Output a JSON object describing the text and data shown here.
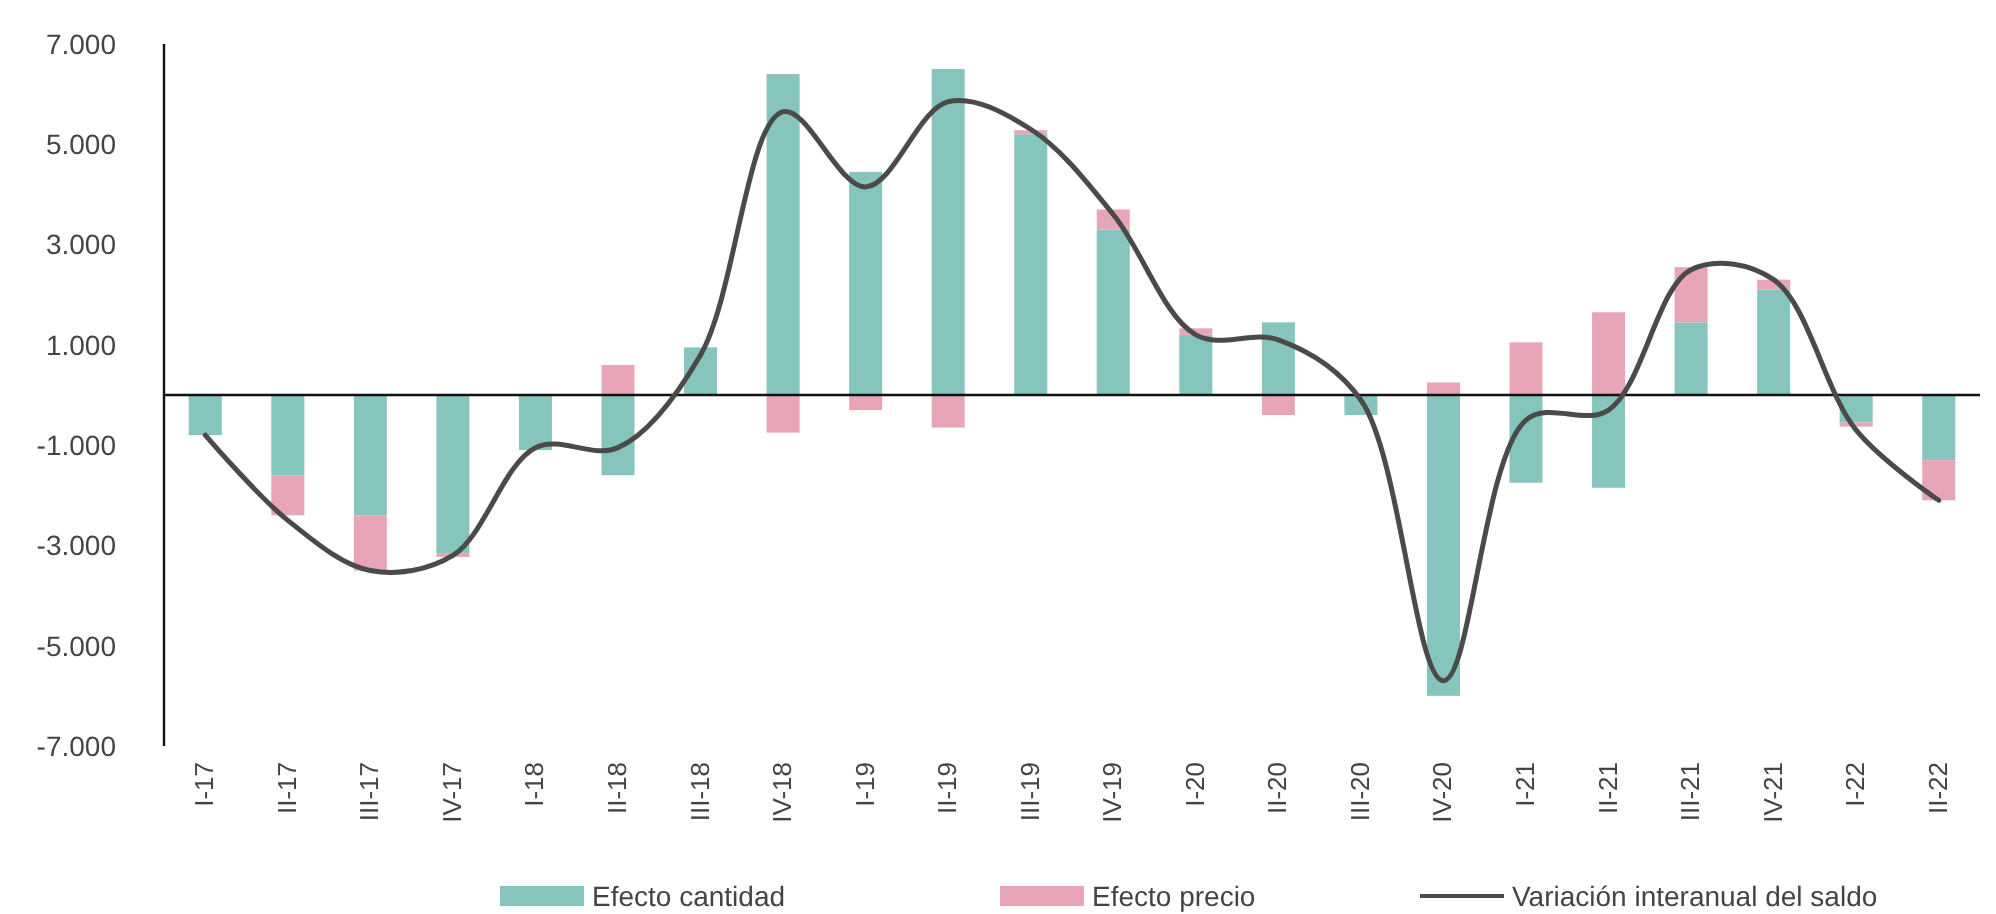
{
  "chart_data": {
    "type": "bar",
    "stacked": true,
    "categories": [
      "I-17",
      "II-17",
      "III-17",
      "IV-17",
      "I-18",
      "II-18",
      "III-18",
      "IV-18",
      "I-19",
      "II-19",
      "III-19",
      "IV-19",
      "I-20",
      "II-20",
      "III-20",
      "IV-20",
      "I-21",
      "II-21",
      "III-21",
      "IV-21",
      "I-22",
      "II-22"
    ],
    "series": [
      {
        "name": "Efecto cantidad",
        "color": "#86c5bd",
        "values": [
          -800,
          -1600,
          -2400,
          -3150,
          -1100,
          -1600,
          950,
          6400,
          4450,
          6500,
          5200,
          3300,
          1200,
          1450,
          -400,
          -6000,
          -1750,
          -1850,
          1450,
          2100,
          -550,
          -1300
        ]
      },
      {
        "name": "Efecto precio",
        "color": "#e8a5b8",
        "values": [
          0,
          -800,
          -1100,
          -80,
          null,
          600,
          null,
          -750,
          -300,
          -650,
          80,
          400,
          130,
          -400,
          0,
          250,
          1050,
          1650,
          1100,
          200,
          -80,
          -800
        ]
      },
      {
        "name": "Variación interanual del saldo",
        "type": "line",
        "color": "#4a4a4a",
        "values": [
          -800,
          -2500,
          -3500,
          -3200,
          -1050,
          -1050,
          800,
          5650,
          4150,
          5850,
          5300,
          3600,
          1200,
          1100,
          -100,
          -5700,
          -500,
          -300,
          2500,
          2300,
          -700,
          -2100
        ]
      }
    ],
    "ylim": [
      -7000,
      7000
    ],
    "yticks": [
      {
        "value": -7000,
        "label": "-7.000"
      },
      {
        "value": -5000,
        "label": "-5.000"
      },
      {
        "value": -3000,
        "label": "-3.000"
      },
      {
        "value": -1000,
        "label": "-1.000"
      },
      {
        "value": 1000,
        "label": "1.000"
      },
      {
        "value": 3000,
        "label": "3.000"
      },
      {
        "value": 5000,
        "label": "5.000"
      },
      {
        "value": 7000,
        "label": "7.000"
      }
    ],
    "legend": "bottom"
  }
}
